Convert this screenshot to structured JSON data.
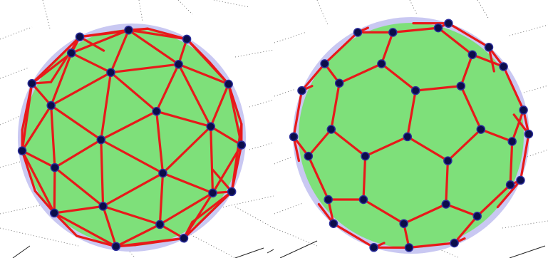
{
  "figure": {
    "panels": [
      {
        "id": "left",
        "description_key": "geodesic-triangulated-sphere"
      },
      {
        "id": "right",
        "description_key": "truncated-icosahedron-hexagonal-mesh"
      }
    ],
    "colors": {
      "sphere_fill": "#7ee07a",
      "halo_fill": "#c9c8f2",
      "edge": "#e8191a",
      "node": "#0b0d4a",
      "grid": "#555555"
    }
  }
}
